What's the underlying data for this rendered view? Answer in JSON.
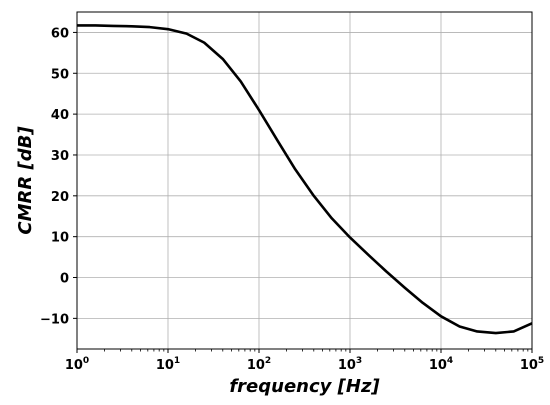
{
  "chart_data": {
    "type": "line",
    "title": "",
    "xlabel": "frequency [Hz]",
    "ylabel": "CMRR [dB]",
    "xscale": "log",
    "xlim": [
      1,
      100000
    ],
    "ylim": [
      -17.5,
      65
    ],
    "grid": true,
    "x_ticks": [
      {
        "value": 1,
        "base": "10",
        "exp": "0"
      },
      {
        "value": 10,
        "base": "10",
        "exp": "1"
      },
      {
        "value": 100,
        "base": "10",
        "exp": "2"
      },
      {
        "value": 1000,
        "base": "10",
        "exp": "3"
      },
      {
        "value": 10000,
        "base": "10",
        "exp": "4"
      },
      {
        "value": 100000,
        "base": "10",
        "exp": "5"
      }
    ],
    "y_ticks": [
      {
        "value": 60,
        "label": "60"
      },
      {
        "value": 50,
        "label": "50"
      },
      {
        "value": 40,
        "label": "40"
      },
      {
        "value": 30,
        "label": "30"
      },
      {
        "value": 20,
        "label": "20"
      },
      {
        "value": 10,
        "label": "10"
      },
      {
        "value": 0,
        "label": "0"
      },
      {
        "value": -10,
        "label": "−10"
      }
    ],
    "series": [
      {
        "color": "#000000",
        "x": [
          1,
          1.6,
          2.5,
          4,
          6.3,
          10,
          16,
          25,
          40,
          63,
          100,
          160,
          250,
          400,
          630,
          1000,
          1600,
          2500,
          4000,
          6300,
          10000,
          16000,
          25000,
          40000,
          63000,
          100000
        ],
        "y": [
          61.7,
          61.7,
          61.6,
          61.5,
          61.3,
          60.8,
          59.7,
          57.5,
          53.5,
          48,
          41,
          33.5,
          26.5,
          20,
          14.5,
          9.8,
          5.5,
          1.5,
          -2.5,
          -6.2,
          -9.5,
          -12,
          -13.2,
          -13.6,
          -13.2,
          -11.2
        ]
      }
    ]
  }
}
